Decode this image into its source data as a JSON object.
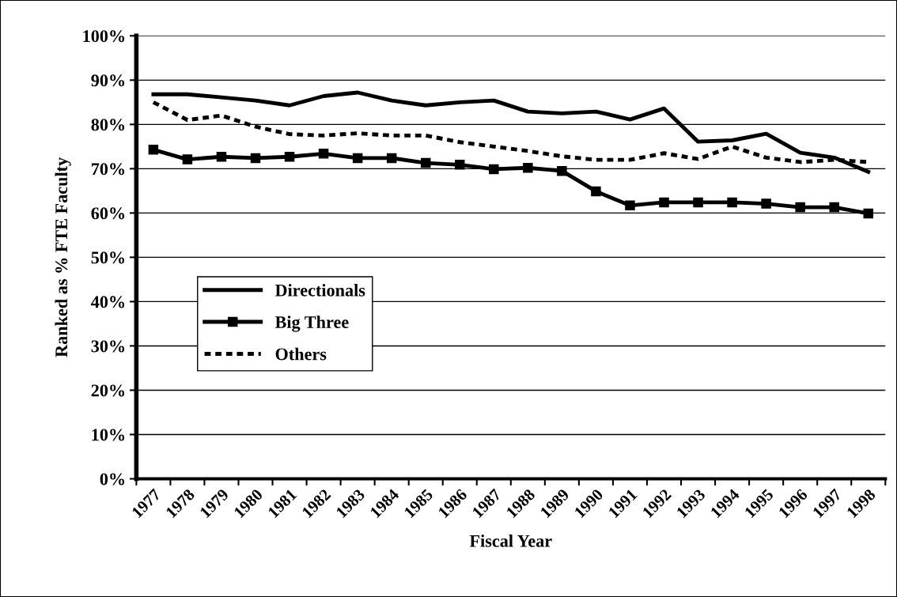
{
  "chart_data": {
    "type": "line",
    "xlabel": "Fiscal Year",
    "ylabel": "Ranked as % FTE Faculty",
    "categories": [
      "1977",
      "1978",
      "1979",
      "1980",
      "1981",
      "1982",
      "1983",
      "1984",
      "1985",
      "1986",
      "1987",
      "1988",
      "1989",
      "1990",
      "1991",
      "1992",
      "1993",
      "1994",
      "1995",
      "1996",
      "1997",
      "1998"
    ],
    "series": [
      {
        "name": "Directionals",
        "color": "#000000",
        "marker": "none",
        "line_style": "solid",
        "values": [
          86.8,
          86.8,
          86.1,
          85.4,
          84.3,
          86.4,
          87.2,
          85.4,
          84.3,
          85.0,
          85.4,
          82.9,
          82.5,
          82.9,
          81.1,
          83.6,
          76.1,
          76.4,
          77.9,
          73.6,
          72.5,
          69.3
        ]
      },
      {
        "name": "Big Three",
        "color": "#000000",
        "marker": "square",
        "line_style": "solid",
        "values": [
          74.3,
          72.1,
          72.7,
          72.4,
          72.7,
          73.4,
          72.4,
          72.4,
          71.3,
          70.9,
          69.9,
          70.2,
          69.5,
          64.9,
          61.7,
          62.4,
          62.4,
          62.4,
          62.1,
          61.3,
          61.3,
          59.9
        ]
      },
      {
        "name": "Others",
        "color": "#000000",
        "marker": "none",
        "line_style": "dashed",
        "values": [
          85.0,
          81.0,
          82.0,
          79.5,
          77.8,
          77.5,
          78.0,
          77.5,
          77.5,
          76.0,
          75.0,
          74.0,
          72.8,
          72.0,
          72.0,
          73.5,
          72.2,
          75.0,
          72.5,
          71.5,
          72.0,
          71.5
        ]
      }
    ],
    "ylim": [
      0,
      100
    ],
    "yticks": [
      {
        "value": 0,
        "label": "0%"
      },
      {
        "value": 10,
        "label": "10%"
      },
      {
        "value": 20,
        "label": "20%"
      },
      {
        "value": 30,
        "label": "30%"
      },
      {
        "value": 40,
        "label": "40%"
      },
      {
        "value": 50,
        "label": "50%"
      },
      {
        "value": 60,
        "label": "60%"
      },
      {
        "value": 70,
        "label": "70%"
      },
      {
        "value": 80,
        "label": "80%"
      },
      {
        "value": 90,
        "label": "90%"
      },
      {
        "value": 100,
        "label": "100%"
      }
    ],
    "grid": "y",
    "legend": "center left"
  }
}
